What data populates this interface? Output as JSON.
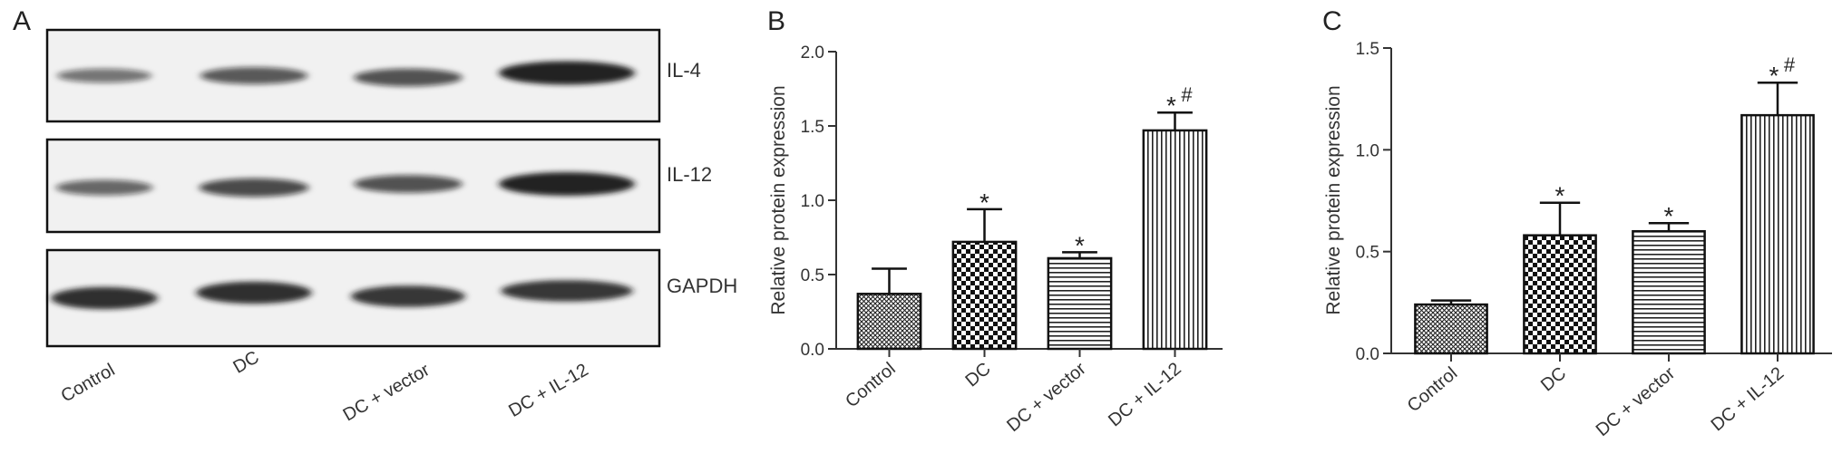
{
  "figure": {
    "panel_a": {
      "letter": "A",
      "blots": [
        {
          "label": "IL-4",
          "bands": [
            0.35,
            0.55,
            0.6,
            1.0
          ]
        },
        {
          "label": "IL-12",
          "bands": [
            0.45,
            0.65,
            0.6,
            1.0
          ]
        },
        {
          "label": "GAPDH",
          "bands": [
            0.9,
            0.9,
            0.85,
            0.85
          ]
        }
      ],
      "lanes": [
        "Control",
        "DC",
        "DC + vector",
        "DC + IL-12"
      ]
    }
  },
  "chart_data": [
    {
      "panel": "B",
      "type": "bar",
      "categories": [
        "Control",
        "DC",
        "DC + vector",
        "DC + IL-12"
      ],
      "values": [
        0.37,
        0.72,
        0.61,
        1.47
      ],
      "errors": [
        0.17,
        0.22,
        0.04,
        0.12
      ],
      "significance": [
        {
          "star": "",
          "hash": ""
        },
        {
          "star": "*",
          "hash": ""
        },
        {
          "star": "*",
          "hash": ""
        },
        {
          "star": "*",
          "hash": "#"
        }
      ],
      "patterns": [
        "crosshatch",
        "checker",
        "horizontal",
        "vertical"
      ],
      "ylabel": "Relative protein expression",
      "ylim": [
        0,
        2.0
      ],
      "yticks": [
        "0.0",
        "0.5",
        "1.0",
        "1.5",
        "2.0"
      ],
      "ytick_values": [
        0,
        0.5,
        1.0,
        1.5,
        2.0
      ]
    },
    {
      "panel": "C",
      "type": "bar",
      "categories": [
        "Control",
        "DC",
        "DC + vector",
        "DC + IL-12"
      ],
      "values": [
        0.24,
        0.58,
        0.6,
        1.17
      ],
      "errors": [
        0.02,
        0.16,
        0.04,
        0.16
      ],
      "significance": [
        {
          "star": "",
          "hash": ""
        },
        {
          "star": "*",
          "hash": ""
        },
        {
          "star": "*",
          "hash": ""
        },
        {
          "star": "*",
          "hash": "#"
        }
      ],
      "patterns": [
        "crosshatch",
        "checker",
        "horizontal",
        "vertical"
      ],
      "ylabel": "Relative protein expression",
      "ylim": [
        0,
        1.5
      ],
      "yticks": [
        "0.0",
        "0.5",
        "1.0",
        "1.5"
      ],
      "ytick_values": [
        0,
        0.5,
        1.0,
        1.5
      ]
    }
  ],
  "colors": {
    "axis": "#333333",
    "bar_stroke": "#111111",
    "band": "#141414",
    "blot_bg": "#f1f1f1"
  }
}
